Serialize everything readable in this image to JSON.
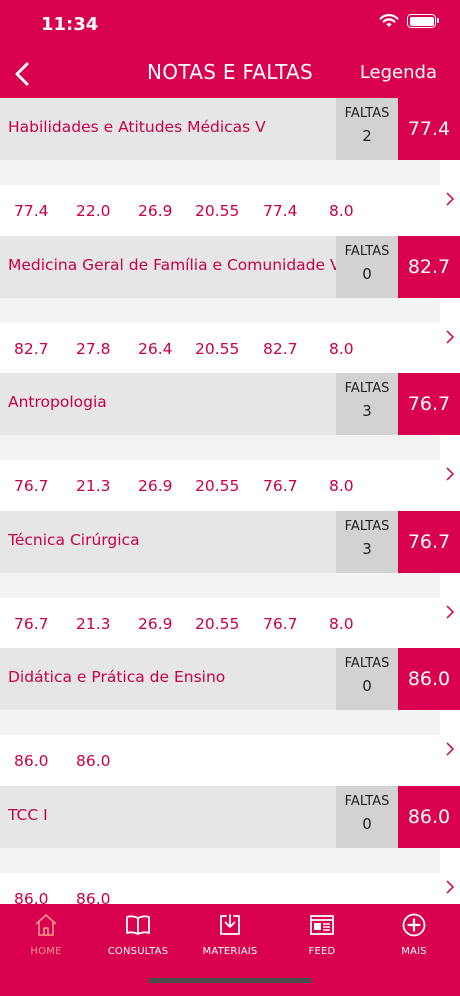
{
  "status": {
    "time": "11:34"
  },
  "nav": {
    "title": "NOTAS E FALTAS",
    "legend": "Legenda"
  },
  "subjects": [
    {
      "name": "Habilidades e Atitudes Médicas V",
      "faltas_label": "FALTAS",
      "faltas": "2",
      "grade": "77.4",
      "scores": [
        "77.4",
        "22.0",
        "26.9",
        "20.55",
        "77.4",
        "8.0"
      ]
    },
    {
      "name": "Medicina Geral de Família e Comunidade V",
      "faltas_label": "FALTAS",
      "faltas": "0",
      "grade": "82.7",
      "scores": [
        "82.7",
        "27.8",
        "26.4",
        "20.55",
        "82.7",
        "8.0"
      ]
    },
    {
      "name": "Antropologia",
      "faltas_label": "FALTAS",
      "faltas": "3",
      "grade": "76.7",
      "scores": [
        "76.7",
        "21.3",
        "26.9",
        "20.55",
        "76.7",
        "8.0"
      ]
    },
    {
      "name": "Técnica Cirúrgica",
      "faltas_label": "FALTAS",
      "faltas": "3",
      "grade": "76.7",
      "scores": [
        "76.7",
        "21.3",
        "26.9",
        "20.55",
        "76.7",
        "8.0"
      ]
    },
    {
      "name": "Didática e Prática de Ensino",
      "faltas_label": "FALTAS",
      "faltas": "0",
      "grade": "86.0",
      "scores": [
        "86.0",
        "86.0"
      ]
    },
    {
      "name": "TCC I",
      "faltas_label": "FALTAS",
      "faltas": "0",
      "grade": "86.0",
      "scores": [
        "86.0",
        "86.0"
      ]
    }
  ],
  "tabs": [
    {
      "label": "HOME",
      "icon": "home-icon",
      "active": true
    },
    {
      "label": "CONSULTAS",
      "icon": "book-icon",
      "active": false
    },
    {
      "label": "MATERIAIS",
      "icon": "download-icon",
      "active": false
    },
    {
      "label": "FEED",
      "icon": "newspaper-icon",
      "active": false
    },
    {
      "label": "MAIS",
      "icon": "plus-circle-icon",
      "active": false
    }
  ],
  "colors": {
    "brand": "#d9004f",
    "text_accent": "#c8004a",
    "tab_active": "#ff9a8a"
  }
}
